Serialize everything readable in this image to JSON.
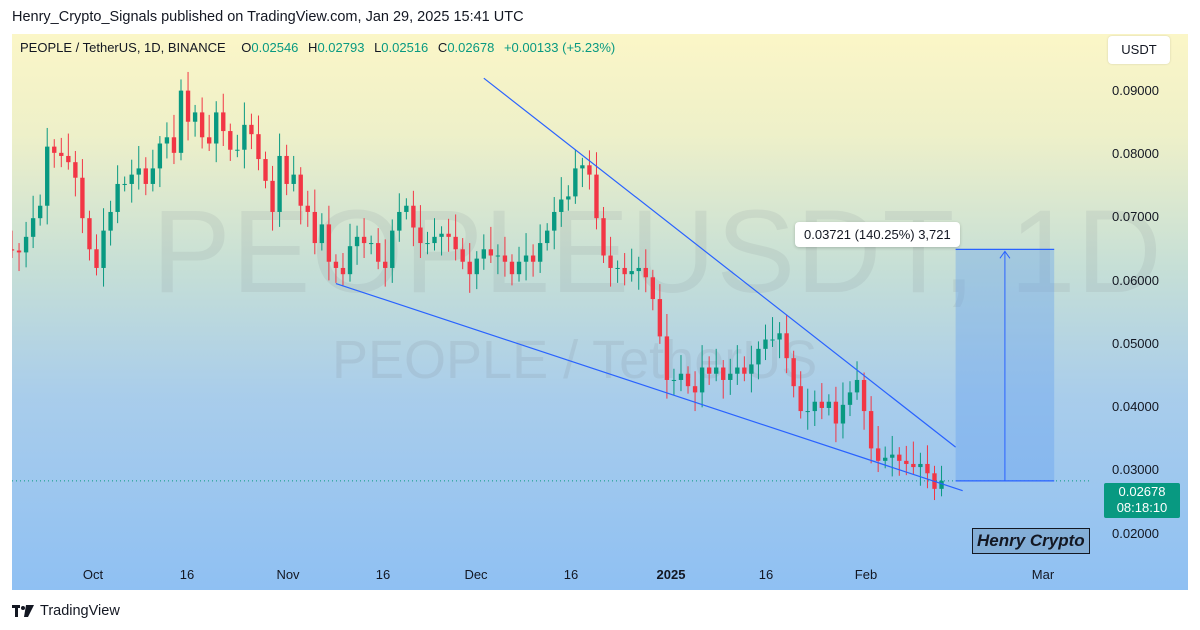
{
  "publisher_line": "Henry_Crypto_Signals published on TradingView.com, Jan 29, 2025 15:41 UTC",
  "legend": {
    "symbol": "PEOPLE / TetherUS, 1D, BINANCE",
    "o_label": "O",
    "o_value": "0.02546",
    "h_label": "H",
    "h_value": "0.02793",
    "l_label": "L",
    "l_value": "0.02516",
    "c_label": "C",
    "c_value": "0.02678",
    "change": "+0.00133 (+5.23%)"
  },
  "quote_unit": "USDT",
  "watermark": {
    "main": "PEOPLEUSDT, 1D",
    "sub": "PEOPLE / TetherUS"
  },
  "price_tag": {
    "price": "0.02678",
    "countdown": "08:18:10"
  },
  "measure_label": "0.03721 (140.25%) 3,721",
  "signature": "Henry Crypto",
  "footer_brand": "TradingView",
  "colors": {
    "up": "#089981",
    "down": "#f23645",
    "trendline": "#2962ff",
    "measure_fill": "#5b9cf0"
  },
  "chart_data": {
    "type": "candlestick",
    "y_axis": {
      "position": "right",
      "ticks": [
        "0.09000",
        "0.08000",
        "0.07000",
        "0.06000",
        "0.05000",
        "0.04000",
        "0.03000",
        "0.02000"
      ],
      "ylim": [
        0.0131,
        0.0986
      ]
    },
    "x_axis": {
      "range": [
        "2024-09-19",
        "2025-03-05"
      ],
      "ticks": [
        {
          "label": "Oct",
          "date": "2024-10-01",
          "bold": false
        },
        {
          "label": "16",
          "date": "2024-10-16",
          "bold": false
        },
        {
          "label": "Nov",
          "date": "2024-11-01",
          "bold": false
        },
        {
          "label": "16",
          "date": "2024-11-16",
          "bold": false
        },
        {
          "label": "Dec",
          "date": "2024-12-01",
          "bold": false
        },
        {
          "label": "16",
          "date": "2024-12-16",
          "bold": false
        },
        {
          "label": "2025",
          "date": "2025-01-01",
          "bold": true
        },
        {
          "label": "16",
          "date": "2025-01-16",
          "bold": false
        },
        {
          "label": "Feb",
          "date": "2025-02-01",
          "bold": false
        },
        {
          "label": "Mar",
          "date": "2025-03-01",
          "bold": false
        }
      ]
    },
    "candles_close": [
      0.0595,
      0.0635,
      0.064,
      0.064,
      0.0638,
      0.0635,
      0.066,
      0.069,
      0.071,
      0.0805,
      0.0795,
      0.079,
      0.078,
      0.0755,
      0.069,
      0.064,
      0.061,
      0.067,
      0.07,
      0.0745,
      0.0745,
      0.076,
      0.077,
      0.0745,
      0.077,
      0.081,
      0.082,
      0.0795,
      0.0895,
      0.0845,
      0.086,
      0.082,
      0.081,
      0.086,
      0.083,
      0.08,
      0.08,
      0.084,
      0.0825,
      0.0785,
      0.075,
      0.07,
      0.079,
      0.0745,
      0.076,
      0.071,
      0.07,
      0.065,
      0.068,
      0.062,
      0.061,
      0.06,
      0.0645,
      0.066,
      0.065,
      0.065,
      0.062,
      0.061,
      0.067,
      0.07,
      0.071,
      0.0675,
      0.065,
      0.065,
      0.066,
      0.0665,
      0.066,
      0.064,
      0.062,
      0.06,
      0.0625,
      0.064,
      0.063,
      0.063,
      0.062,
      0.06,
      0.062,
      0.063,
      0.062,
      0.065,
      0.067,
      0.07,
      0.072,
      0.0725,
      0.077,
      0.0775,
      0.076,
      0.069,
      0.063,
      0.061,
      0.061,
      0.06,
      0.0605,
      0.061,
      0.0595,
      0.056,
      0.05,
      0.043,
      0.043,
      0.044,
      0.042,
      0.041,
      0.045,
      0.044,
      0.045,
      0.043,
      0.044,
      0.045,
      0.044,
      0.0455,
      0.048,
      0.0495,
      0.0495,
      0.0505,
      0.0465,
      0.042,
      0.038,
      0.038,
      0.0395,
      0.0385,
      0.0395,
      0.036,
      0.039,
      0.041,
      0.043,
      0.038,
      0.032,
      0.03,
      0.0305,
      0.031,
      0.03,
      0.0295,
      0.029,
      0.0295,
      0.028,
      0.0255,
      0.0268
    ]
  }
}
